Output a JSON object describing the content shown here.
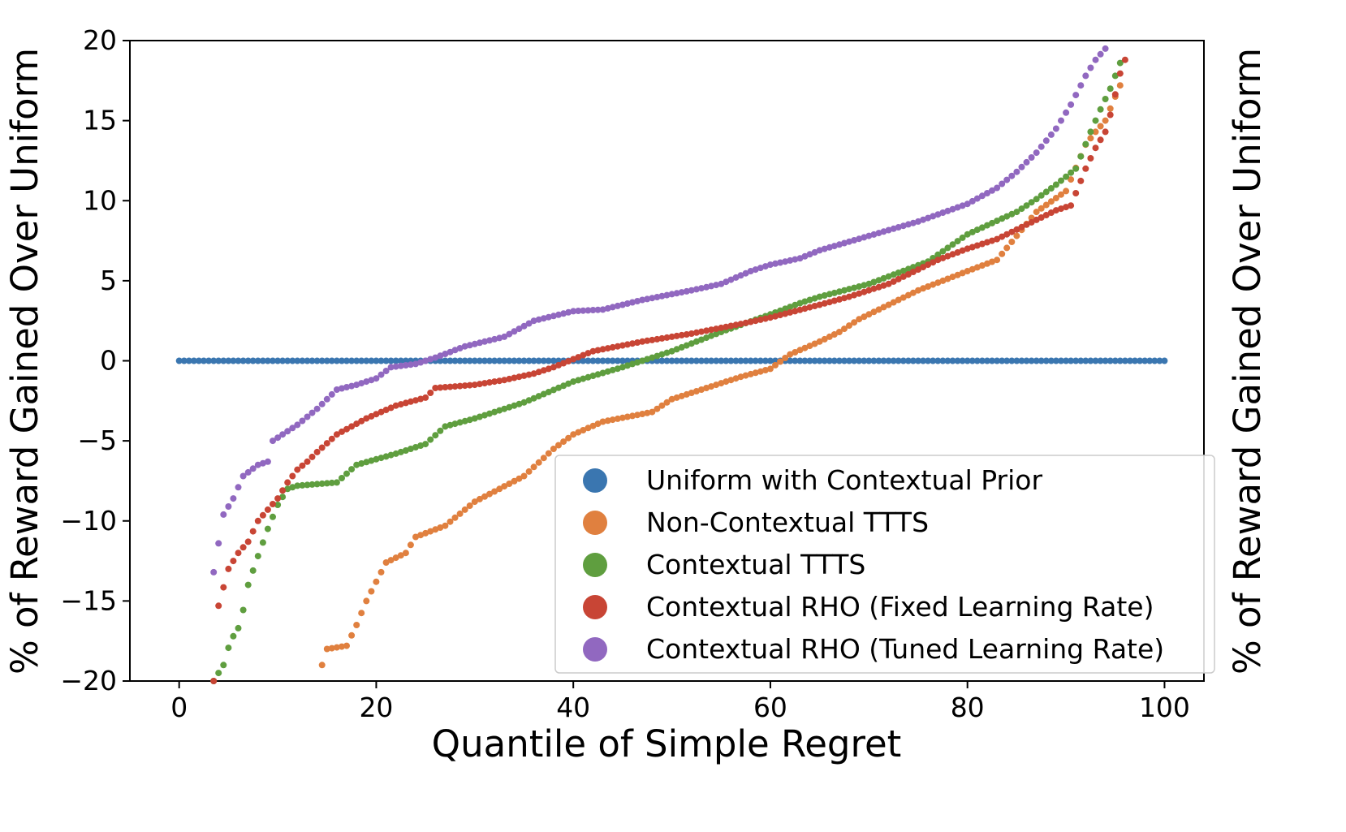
{
  "chart_data": {
    "type": "scatter",
    "xlabel": "Quantile of Simple Regret",
    "ylabel": "% of Reward Gained Over Uniform",
    "ylabel_right": "% of Reward Gained Over Uniform",
    "xlim": [
      -5,
      104
    ],
    "ylim": [
      -20,
      20
    ],
    "xticks": [
      0,
      20,
      40,
      60,
      80,
      100
    ],
    "yticks": [
      -20,
      -15,
      -10,
      -5,
      0,
      5,
      10,
      15,
      20
    ],
    "grid": false,
    "legend_position": "lower right",
    "series": [
      {
        "name": "Uniform with Contextual Prior",
        "color": "#3a76b0",
        "knots": [
          [
            0,
            0
          ],
          [
            100,
            0
          ]
        ]
      },
      {
        "name": "Non-Contextual TTTS",
        "color": "#e0803f",
        "knots": [
          [
            14.5,
            -19.0
          ],
          [
            15,
            -18.0
          ],
          [
            17,
            -17.8
          ],
          [
            18,
            -16.5
          ],
          [
            19,
            -15.0
          ],
          [
            20,
            -13.8
          ],
          [
            21,
            -12.6
          ],
          [
            23,
            -12.0
          ],
          [
            24,
            -11.0
          ],
          [
            27,
            -10.3
          ],
          [
            30,
            -8.8
          ],
          [
            35,
            -7.2
          ],
          [
            38,
            -5.5
          ],
          [
            40,
            -4.6
          ],
          [
            43,
            -3.8
          ],
          [
            48,
            -3.2
          ],
          [
            50,
            -2.4
          ],
          [
            54,
            -1.6
          ],
          [
            57,
            -1.0
          ],
          [
            60,
            -0.5
          ],
          [
            62,
            0.4
          ],
          [
            65,
            1.2
          ],
          [
            67,
            1.8
          ],
          [
            69,
            2.6
          ],
          [
            72,
            3.5
          ],
          [
            75,
            4.4
          ],
          [
            80,
            5.6
          ],
          [
            83,
            6.3
          ],
          [
            85,
            7.8
          ],
          [
            87,
            9.3
          ],
          [
            90,
            10.6
          ],
          [
            92,
            13.5
          ],
          [
            93,
            14.3
          ],
          [
            94,
            15.0
          ],
          [
            95,
            16.5
          ],
          [
            95.5,
            17.2
          ]
        ]
      },
      {
        "name": "Contextual TTTS",
        "color": "#5f9e3f",
        "knots": [
          [
            3.5,
            -20.0
          ],
          [
            4.5,
            -19.0
          ],
          [
            5.2,
            -17.5
          ],
          [
            6.2,
            -16.5
          ],
          [
            7,
            -14.0
          ],
          [
            8,
            -12.2
          ],
          [
            9,
            -10.5
          ],
          [
            10,
            -9.0
          ],
          [
            11,
            -8.0
          ],
          [
            12,
            -7.8
          ],
          [
            16,
            -7.6
          ],
          [
            18,
            -6.5
          ],
          [
            22,
            -5.8
          ],
          [
            25,
            -5.2
          ],
          [
            27,
            -4.1
          ],
          [
            30,
            -3.6
          ],
          [
            35,
            -2.6
          ],
          [
            40,
            -1.3
          ],
          [
            45,
            -0.4
          ],
          [
            50,
            0.6
          ],
          [
            55,
            1.8
          ],
          [
            60,
            2.9
          ],
          [
            63,
            3.6
          ],
          [
            65,
            4.0
          ],
          [
            70,
            4.8
          ],
          [
            76,
            6.2
          ],
          [
            80,
            7.9
          ],
          [
            85,
            9.3
          ],
          [
            87,
            10.1
          ],
          [
            89,
            11.0
          ],
          [
            91,
            12.0
          ],
          [
            92.5,
            14.3
          ],
          [
            93.5,
            15.7
          ],
          [
            94.5,
            17.0
          ],
          [
            95.5,
            18.6
          ]
        ]
      },
      {
        "name": "Contextual RHO (Fixed Learning Rate)",
        "color": "#c84535",
        "knots": [
          [
            3.5,
            -20.0
          ],
          [
            4,
            -15.3
          ],
          [
            5,
            -13.0
          ],
          [
            6,
            -12.0
          ],
          [
            7,
            -11.3
          ],
          [
            8,
            -10.0
          ],
          [
            9,
            -9.3
          ],
          [
            10,
            -8.6
          ],
          [
            11,
            -7.6
          ],
          [
            12,
            -6.8
          ],
          [
            13,
            -6.3
          ],
          [
            14,
            -5.7
          ],
          [
            16,
            -4.6
          ],
          [
            19,
            -3.6
          ],
          [
            22,
            -2.8
          ],
          [
            25,
            -2.3
          ],
          [
            26,
            -1.7
          ],
          [
            30,
            -1.5
          ],
          [
            33,
            -1.2
          ],
          [
            36,
            -0.8
          ],
          [
            38,
            -0.4
          ],
          [
            40,
            0.1
          ],
          [
            42,
            0.6
          ],
          [
            47,
            1.2
          ],
          [
            52,
            1.7
          ],
          [
            57,
            2.3
          ],
          [
            60,
            2.7
          ],
          [
            65,
            3.5
          ],
          [
            68,
            4.0
          ],
          [
            72,
            4.8
          ],
          [
            77,
            6.3
          ],
          [
            80,
            7.0
          ],
          [
            83,
            7.6
          ],
          [
            87,
            8.8
          ],
          [
            89,
            9.4
          ],
          [
            90.5,
            9.7
          ],
          [
            92,
            12.0
          ],
          [
            93,
            13.3
          ],
          [
            94,
            14.3
          ],
          [
            94.8,
            16.0
          ],
          [
            95.3,
            17.6
          ],
          [
            96,
            18.8
          ]
        ]
      },
      {
        "name": "Contextual RHO (Tuned Learning Rate)",
        "color": "#9168c0",
        "knots": [
          [
            3.5,
            -13.2
          ],
          [
            4.5,
            -9.6
          ],
          [
            5.5,
            -8.6
          ],
          [
            6.5,
            -7.2
          ],
          [
            8,
            -6.5
          ],
          [
            9,
            -6.3
          ],
          [
            9.5,
            -5.0
          ],
          [
            12,
            -4.0
          ],
          [
            14,
            -3.0
          ],
          [
            16,
            -1.8
          ],
          [
            18,
            -1.5
          ],
          [
            20,
            -1.1
          ],
          [
            21.5,
            -0.4
          ],
          [
            24,
            -0.2
          ],
          [
            26,
            0.2
          ],
          [
            29,
            0.9
          ],
          [
            33,
            1.5
          ],
          [
            36,
            2.5
          ],
          [
            40,
            3.1
          ],
          [
            43,
            3.2
          ],
          [
            47,
            3.8
          ],
          [
            52,
            4.4
          ],
          [
            55,
            4.8
          ],
          [
            58,
            5.6
          ],
          [
            60,
            6.0
          ],
          [
            63,
            6.4
          ],
          [
            65,
            6.9
          ],
          [
            70,
            7.8
          ],
          [
            75,
            8.7
          ],
          [
            80,
            9.8
          ],
          [
            83,
            10.8
          ],
          [
            85,
            11.8
          ],
          [
            87,
            13.0
          ],
          [
            89,
            14.5
          ],
          [
            90.5,
            16.0
          ],
          [
            92,
            17.8
          ],
          [
            93,
            18.8
          ],
          [
            94,
            19.5
          ]
        ]
      }
    ]
  }
}
